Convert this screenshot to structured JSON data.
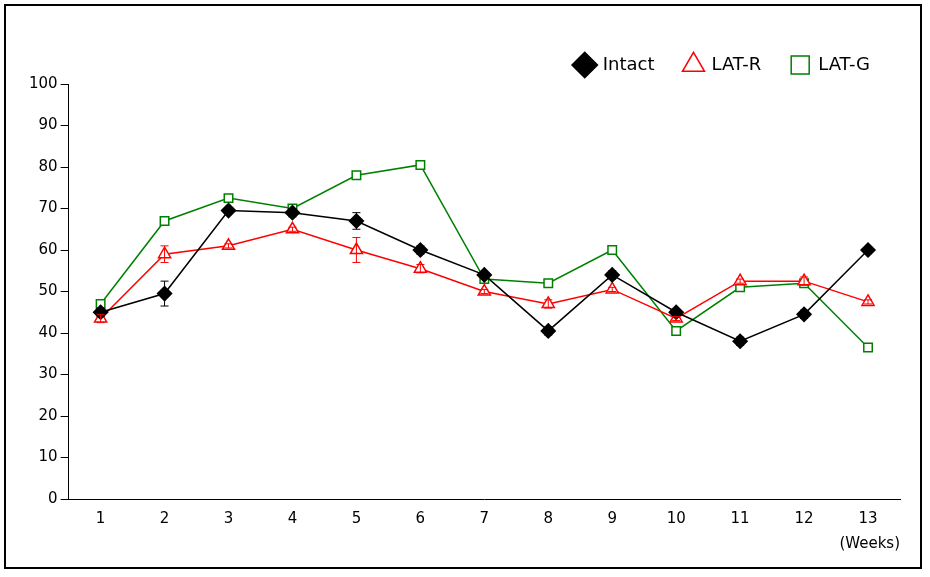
{
  "chart_data": {
    "type": "line",
    "x_label": "(Weeks)",
    "categories": [
      "1",
      "2",
      "3",
      "4",
      "5",
      "6",
      "7",
      "8",
      "9",
      "10",
      "11",
      "12",
      "13"
    ],
    "series": [
      {
        "name": "Intact",
        "color": "#000000",
        "marker": "diamond",
        "values": [
          45,
          49.5,
          69.5,
          69,
          67,
          60,
          54,
          40.5,
          54,
          45,
          38,
          44.5,
          60
        ],
        "errors": [
          1,
          3,
          0.5,
          1,
          2,
          1,
          0.5,
          1,
          1,
          0.5,
          1,
          1,
          0.5
        ]
      },
      {
        "name": "LAT-R",
        "color": "#ff0000",
        "marker": "triangle-open",
        "values": [
          43.5,
          59,
          61,
          65,
          60,
          55.5,
          50,
          47,
          50.5,
          43.5,
          52.5,
          52.5,
          47.5
        ],
        "errors": [
          1,
          2,
          0.5,
          0.5,
          3,
          1,
          0.5,
          1,
          0.5,
          0.5,
          0.5,
          1,
          0.5
        ]
      },
      {
        "name": "LAT-G",
        "color": "#008000",
        "marker": "square-open",
        "values": [
          47,
          67,
          72.5,
          70,
          78,
          80.5,
          53,
          52,
          60,
          40.5,
          51,
          52,
          36.5
        ]
      }
    ],
    "ylim": [
      0,
      100
    ],
    "yticks": [
      0,
      10,
      20,
      30,
      40,
      50,
      60,
      70,
      80,
      90,
      100
    ],
    "grid": false,
    "legend": "top"
  }
}
